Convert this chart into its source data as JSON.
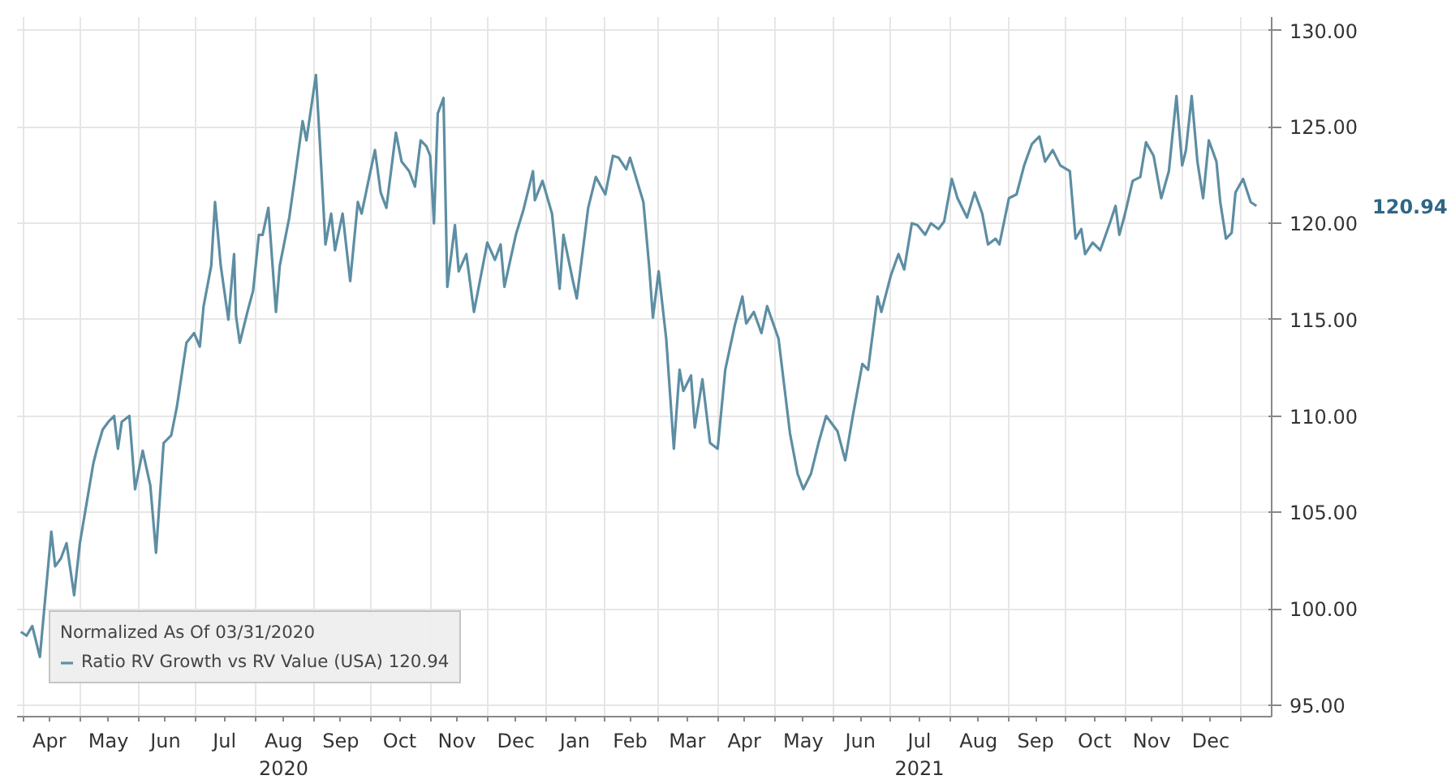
{
  "chart_data": {
    "type": "line",
    "x": [
      "2020-03-31",
      "2020-04-03",
      "2020-04-06",
      "2020-04-10",
      "2020-04-16",
      "2020-04-18",
      "2020-04-21",
      "2020-04-24",
      "2020-04-28",
      "2020-05-01",
      "2020-05-08",
      "2020-05-10",
      "2020-05-13",
      "2020-05-16",
      "2020-05-19",
      "2020-05-21",
      "2020-05-23",
      "2020-05-27",
      "2020-05-30",
      "2020-06-03",
      "2020-06-07",
      "2020-06-10",
      "2020-06-14",
      "2020-06-18",
      "2020-06-21",
      "2020-06-26",
      "2020-06-30",
      "2020-07-03",
      "2020-07-05",
      "2020-07-09",
      "2020-07-11",
      "2020-07-14",
      "2020-07-18",
      "2020-07-21",
      "2020-07-22",
      "2020-07-24",
      "2020-07-28",
      "2020-07-31",
      "2020-08-03",
      "2020-08-05",
      "2020-08-08",
      "2020-08-12",
      "2020-08-14",
      "2020-08-19",
      "2020-08-22",
      "2020-08-26",
      "2020-08-28",
      "2020-09-02",
      "2020-09-04",
      "2020-09-07",
      "2020-09-10",
      "2020-09-12",
      "2020-09-16",
      "2020-09-20",
      "2020-09-24",
      "2020-09-26",
      "2020-09-30",
      "2020-10-03",
      "2020-10-06",
      "2020-10-09",
      "2020-10-14",
      "2020-10-17",
      "2020-10-21",
      "2020-10-24",
      "2020-10-27",
      "2020-10-30",
      "2020-11-01",
      "2020-11-03",
      "2020-11-05",
      "2020-11-08",
      "2020-11-10",
      "2020-11-14",
      "2020-11-16",
      "2020-11-20",
      "2020-11-24",
      "2020-12-01",
      "2020-12-05",
      "2020-12-08",
      "2020-12-10",
      "2020-12-16",
      "2020-12-20",
      "2020-12-25",
      "2020-12-26",
      "2020-12-30",
      "2021-01-04",
      "2021-01-08",
      "2021-01-10",
      "2021-01-15",
      "2021-01-17",
      "2021-01-23",
      "2021-01-27",
      "2021-02-01",
      "2021-02-05",
      "2021-02-08",
      "2021-02-12",
      "2021-02-14",
      "2021-02-21",
      "2021-02-24",
      "2021-02-26",
      "2021-03-01",
      "2021-03-05",
      "2021-03-09",
      "2021-03-12",
      "2021-03-14",
      "2021-03-18",
      "2021-03-20",
      "2021-03-24",
      "2021-03-28",
      "2021-04-01",
      "2021-04-05",
      "2021-04-10",
      "2021-04-14",
      "2021-04-16",
      "2021-04-20",
      "2021-04-24",
      "2021-04-27",
      "2021-05-03",
      "2021-05-09",
      "2021-05-13",
      "2021-05-16",
      "2021-05-20",
      "2021-05-24",
      "2021-05-28",
      "2021-06-03",
      "2021-06-07",
      "2021-06-11",
      "2021-06-16",
      "2021-06-19",
      "2021-06-24",
      "2021-06-26",
      "2021-07-01",
      "2021-07-05",
      "2021-07-08",
      "2021-07-12",
      "2021-07-15",
      "2021-07-19",
      "2021-07-22",
      "2021-07-26",
      "2021-07-29",
      "2021-08-02",
      "2021-08-05",
      "2021-08-10",
      "2021-08-14",
      "2021-08-18",
      "2021-08-21",
      "2021-08-25",
      "2021-08-27",
      "2021-09-01",
      "2021-09-05",
      "2021-09-09",
      "2021-09-13",
      "2021-09-17",
      "2021-09-20",
      "2021-09-24",
      "2021-09-28",
      "2021-10-03",
      "2021-10-06",
      "2021-10-09",
      "2021-10-11",
      "2021-10-15",
      "2021-10-19",
      "2021-10-24",
      "2021-10-27",
      "2021-10-29",
      "2021-11-01",
      "2021-11-05",
      "2021-11-09",
      "2021-11-12",
      "2021-11-16",
      "2021-11-20",
      "2021-11-24",
      "2021-11-28",
      "2021-12-01",
      "2021-12-03",
      "2021-12-06",
      "2021-12-09",
      "2021-12-12",
      "2021-12-15",
      "2021-12-19",
      "2021-12-21",
      "2021-12-24",
      "2021-12-27",
      "2021-12-29",
      "2022-01-02",
      "2022-01-06",
      "2022-01-09"
    ],
    "series": [
      {
        "name": "Ratio RV Growth vs RV Value (USA) 120.94",
        "color": "#5d8ea3",
        "values": [
          98.8,
          98.6,
          99.1,
          97.5,
          104.0,
          102.2,
          102.6,
          103.4,
          100.7,
          103.4,
          107.5,
          108.3,
          109.3,
          109.7,
          110.0,
          108.3,
          109.7,
          110.0,
          106.2,
          108.2,
          106.4,
          102.9,
          108.6,
          109.0,
          110.5,
          113.8,
          114.3,
          113.6,
          115.7,
          117.8,
          121.1,
          117.8,
          115.0,
          118.4,
          115.2,
          113.8,
          115.4,
          116.5,
          119.4,
          119.4,
          120.8,
          115.4,
          117.8,
          120.3,
          122.4,
          125.3,
          124.3,
          127.7,
          124.3,
          118.9,
          120.5,
          118.6,
          120.5,
          117.0,
          121.1,
          120.5,
          122.4,
          123.8,
          121.6,
          120.8,
          124.7,
          123.2,
          122.7,
          121.9,
          124.3,
          124.0,
          123.5,
          120.0,
          125.7,
          126.5,
          116.7,
          119.9,
          117.5,
          118.4,
          115.4,
          119.0,
          118.1,
          118.9,
          116.7,
          119.4,
          120.7,
          122.7,
          121.2,
          122.2,
          120.5,
          116.6,
          119.4,
          117.0,
          116.1,
          120.8,
          122.4,
          121.5,
          123.5,
          123.4,
          122.8,
          123.4,
          121.1,
          117.8,
          115.1,
          117.5,
          114.0,
          108.3,
          112.4,
          111.3,
          112.1,
          109.4,
          111.9,
          108.6,
          108.3,
          112.4,
          114.7,
          116.2,
          114.8,
          115.4,
          114.3,
          115.7,
          114.0,
          109.1,
          107.0,
          106.2,
          107.0,
          108.6,
          110.0,
          109.2,
          107.7,
          110.0,
          112.7,
          112.4,
          116.2,
          115.4,
          117.3,
          118.4,
          117.6,
          120.0,
          119.9,
          119.4,
          120.0,
          119.7,
          120.1,
          122.3,
          121.3,
          120.3,
          121.6,
          120.5,
          118.9,
          119.2,
          118.9,
          121.3,
          121.5,
          123.0,
          124.1,
          124.5,
          123.2,
          123.8,
          123.0,
          122.7,
          119.2,
          119.7,
          118.4,
          119.0,
          118.6,
          120.0,
          120.9,
          119.4,
          120.5,
          122.2,
          122.4,
          124.2,
          123.5,
          121.3,
          122.7,
          126.6,
          123.0,
          123.8,
          126.6,
          123.2,
          121.3,
          124.3,
          123.2,
          121.1,
          119.2,
          119.5,
          121.6,
          122.3,
          121.1,
          120.9
        ]
      }
    ],
    "legend_title": "Normalized As Of 03/31/2020",
    "legend": "bottom left",
    "annotations": [
      "120.94"
    ],
    "xlim": [
      "2020-03-29",
      "2022-01-17"
    ],
    "xticks": [
      {
        "value": "2020-04-01",
        "label": null
      },
      {
        "value": "2020-04-15",
        "label": "Apr"
      },
      {
        "value": "2020-05-01",
        "label": null
      },
      {
        "value": "2020-05-16",
        "label": "May"
      },
      {
        "value": "2020-06-01",
        "label": null
      },
      {
        "value": "2020-06-15",
        "label": "Jun"
      },
      {
        "value": "2020-07-01",
        "label": null
      },
      {
        "value": "2020-07-16",
        "label": "Jul"
      },
      {
        "value": "2020-08-01",
        "label": null
      },
      {
        "value": "2020-08-16",
        "label": "Aug\n2020"
      },
      {
        "value": "2020-09-01",
        "label": null
      },
      {
        "value": "2020-09-15",
        "label": "Sep"
      },
      {
        "value": "2020-10-01",
        "label": null
      },
      {
        "value": "2020-10-16",
        "label": "Oct"
      },
      {
        "value": "2020-11-01",
        "label": null
      },
      {
        "value": "2020-11-15",
        "label": "Nov"
      },
      {
        "value": "2020-12-01",
        "label": null
      },
      {
        "value": "2020-12-16",
        "label": "Dec"
      },
      {
        "value": "2021-01-01",
        "label": null
      },
      {
        "value": "2021-01-16",
        "label": "Jan"
      },
      {
        "value": "2021-02-01",
        "label": null
      },
      {
        "value": "2021-02-14",
        "label": "Feb"
      },
      {
        "value": "2021-03-01",
        "label": null
      },
      {
        "value": "2021-03-16",
        "label": "Mar"
      },
      {
        "value": "2021-04-01",
        "label": null
      },
      {
        "value": "2021-04-15",
        "label": "Apr"
      },
      {
        "value": "2021-05-01",
        "label": null
      },
      {
        "value": "2021-05-16",
        "label": "May"
      },
      {
        "value": "2021-06-01",
        "label": null
      },
      {
        "value": "2021-06-15",
        "label": "Jun"
      },
      {
        "value": "2021-07-01",
        "label": null
      },
      {
        "value": "2021-07-16",
        "label": "Jul\n2021"
      },
      {
        "value": "2021-08-01",
        "label": null
      },
      {
        "value": "2021-08-16",
        "label": "Aug"
      },
      {
        "value": "2021-09-01",
        "label": null
      },
      {
        "value": "2021-09-15",
        "label": "Sep"
      },
      {
        "value": "2021-10-01",
        "label": null
      },
      {
        "value": "2021-10-16",
        "label": "Oct"
      },
      {
        "value": "2021-11-01",
        "label": null
      },
      {
        "value": "2021-11-15",
        "label": "Nov"
      },
      {
        "value": "2021-12-01",
        "label": null
      },
      {
        "value": "2021-12-16",
        "label": "Dec"
      },
      {
        "value": "2022-01-01",
        "label": null
      }
    ],
    "ylim": [
      94.4,
      130.7
    ],
    "yticks": [
      {
        "value": 95,
        "label": "95.00"
      },
      {
        "value": 100,
        "label": "100.00"
      },
      {
        "value": 105,
        "label": "105.00"
      },
      {
        "value": 110,
        "label": "110.00"
      },
      {
        "value": 115,
        "label": "115.00"
      },
      {
        "value": 120,
        "label": "120.00"
      },
      {
        "value": 125,
        "label": "125.00"
      },
      {
        "value": 130,
        "label": "130.00"
      }
    ],
    "grid": true,
    "marker": "none",
    "line_style": "solid"
  }
}
